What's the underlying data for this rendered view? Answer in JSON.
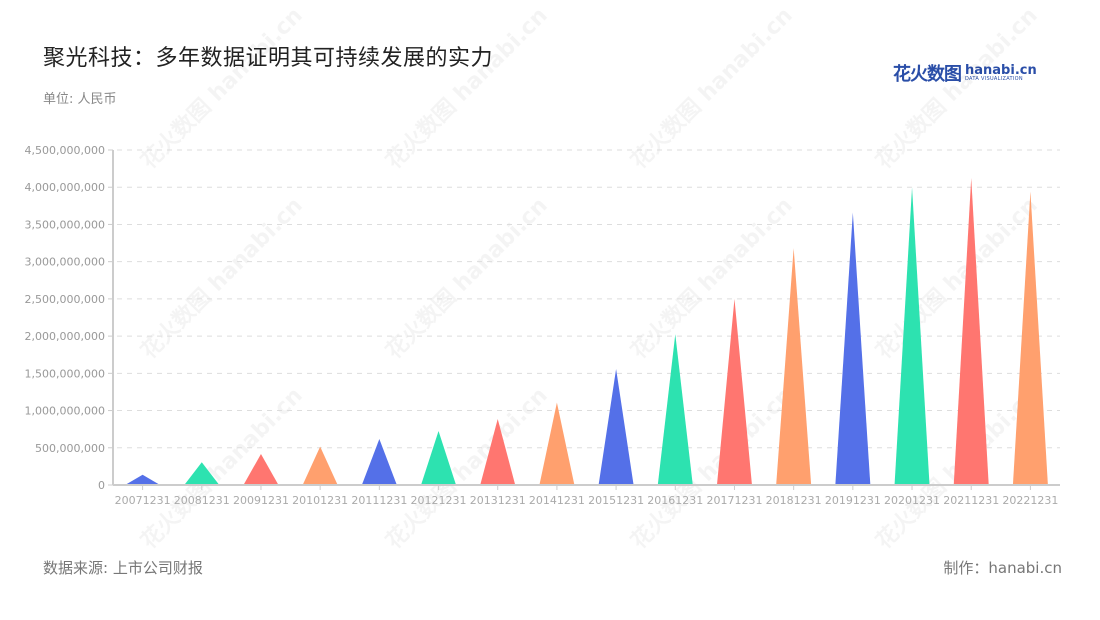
{
  "header": {
    "title": "聚光科技：多年数据证明其可持续发展的实力",
    "unit": "单位: 人民币"
  },
  "logo": {
    "cn": "花火数图",
    "en": "hanabi.cn",
    "tagline": "DATA VISUALIZATION"
  },
  "footer": {
    "source": "数据来源: 上市公司财报",
    "credit": "制作：hanabi.cn"
  },
  "colors": {
    "palette": [
      "#5470e8",
      "#2de2b0",
      "#ff7670",
      "#ffa06e"
    ],
    "grid": "#dddddd",
    "axis": "#cccccc"
  },
  "chart_data": {
    "type": "bar",
    "bar_shape": "triangle",
    "title": "聚光科技：多年数据证明其可持续发展的实力",
    "subtitle": "单位: 人民币",
    "xlabel": "",
    "ylabel": "",
    "ylim": [
      0,
      4500000000
    ],
    "yticks": [
      0,
      500000000,
      1000000000,
      1500000000,
      2000000000,
      2500000000,
      3000000000,
      3500000000,
      4000000000,
      4500000000
    ],
    "ytick_labels": [
      "0",
      "500,000,000",
      "1,000,000,000",
      "1,500,000,000",
      "2,000,000,000",
      "2,500,000,000",
      "3,000,000,000",
      "3,500,000,000",
      "4,000,000,000",
      "4,500,000,000"
    ],
    "grid": true,
    "legend": null,
    "categories": [
      "20071231",
      "20081231",
      "20091231",
      "20101231",
      "20111231",
      "20121231",
      "20131231",
      "20141231",
      "20151231",
      "20161231",
      "20171231",
      "20181231",
      "20191231",
      "20201231",
      "20211231",
      "20221231"
    ],
    "values": [
      138000000,
      305000000,
      417000000,
      515000000,
      618000000,
      726000000,
      887000000,
      1106000000,
      1559000000,
      2025000000,
      2500000000,
      3181000000,
      3660000000,
      3996000000,
      4122000000,
      3942000000
    ]
  }
}
